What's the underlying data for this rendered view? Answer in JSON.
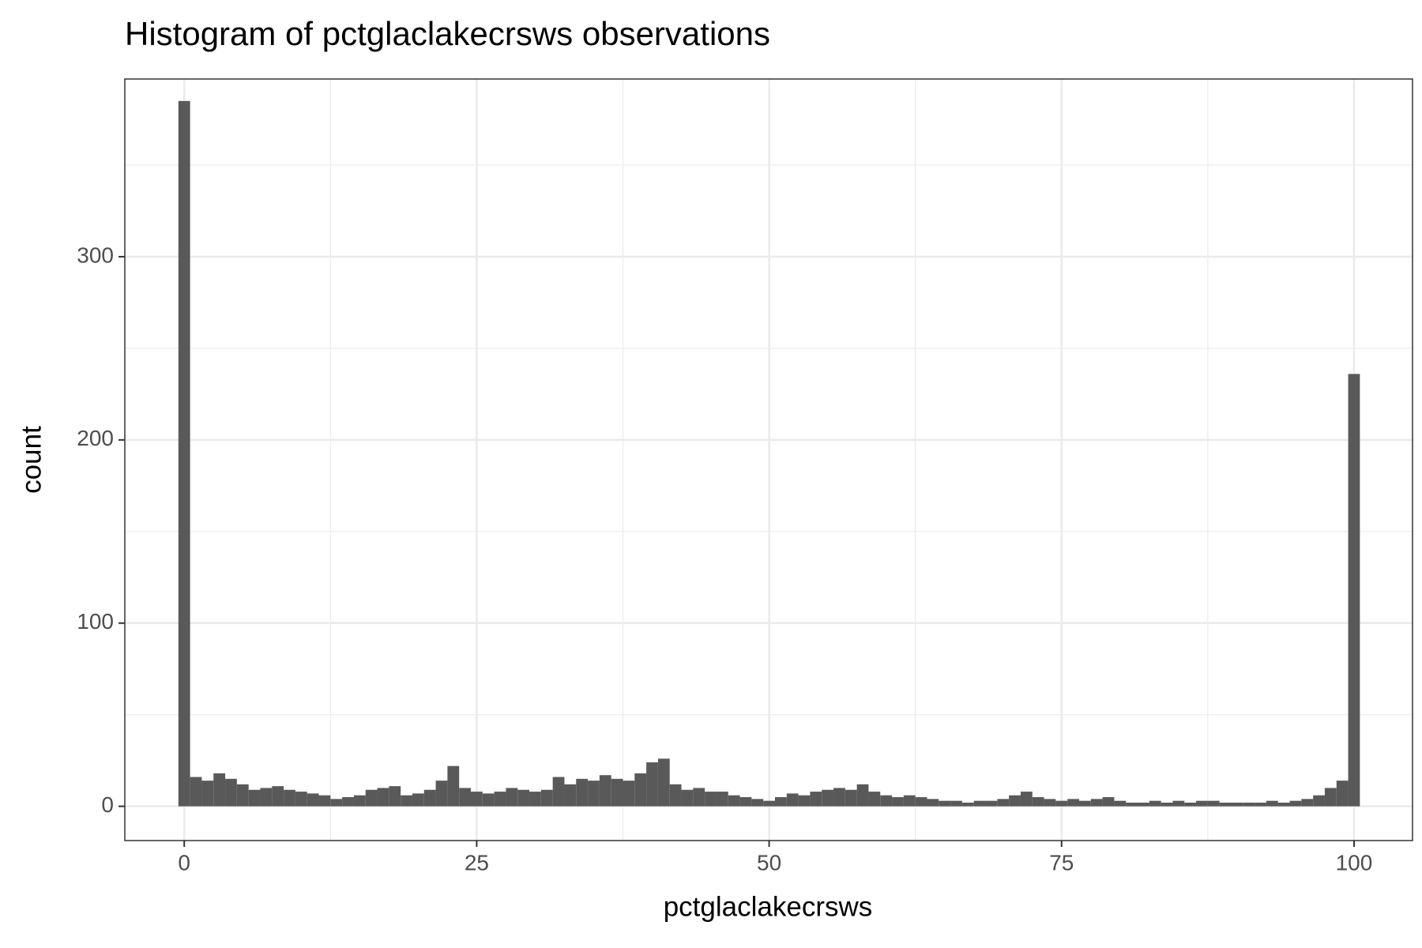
{
  "chart_data": {
    "type": "histogram",
    "title": "Histogram of pctglaclakecrsws observations",
    "x_label": "pctglaclakecrsws",
    "y_label": "count",
    "color": "#595959",
    "grid": true,
    "xlim": [
      -5.08,
      105.0
    ],
    "ylim": [
      -18.7,
      397
    ],
    "xticks": [
      0,
      25,
      50,
      75,
      100
    ],
    "yticks": [
      0,
      100,
      200,
      300
    ],
    "x_minor_ticks": [
      12.5,
      37.5,
      62.5,
      87.5
    ],
    "y_minor_ticks": [
      50,
      150,
      250,
      350
    ],
    "bins": [
      -0.5,
      0.5,
      1.5,
      2.5,
      3.5,
      4.5,
      5.5,
      6.5,
      7.5,
      8.5,
      9.5,
      10.5,
      11.5,
      12.5,
      13.5,
      14.5,
      15.5,
      16.5,
      17.5,
      18.5,
      19.5,
      20.5,
      21.5,
      22.5,
      23.5,
      24.5,
      25.5,
      26.5,
      27.5,
      28.5,
      29.5,
      30.5,
      31.5,
      32.5,
      33.5,
      34.5,
      35.5,
      36.5,
      37.5,
      38.5,
      39.5,
      40.5,
      41.5,
      42.5,
      43.5,
      44.5,
      45.5,
      46.5,
      47.5,
      48.5,
      49.5,
      50.5,
      51.5,
      52.5,
      53.5,
      54.5,
      55.5,
      56.5,
      57.5,
      58.5,
      59.5,
      60.5,
      61.5,
      62.5,
      63.5,
      64.5,
      65.5,
      66.5,
      67.5,
      68.5,
      69.5,
      70.5,
      71.5,
      72.5,
      73.5,
      74.5,
      75.5,
      76.5,
      77.5,
      78.5,
      79.5,
      80.5,
      81.5,
      82.5,
      83.5,
      84.5,
      85.5,
      86.5,
      87.5,
      88.5,
      89.5,
      90.5,
      91.5,
      92.5,
      93.5,
      94.5,
      95.5,
      96.5,
      97.5,
      98.5,
      99.5,
      100.5
    ],
    "counts": [
      385,
      16,
      14,
      18,
      15,
      12,
      9,
      10,
      11,
      9,
      8,
      7,
      6,
      4,
      5,
      6,
      9,
      10,
      11,
      6,
      7,
      9,
      14,
      22,
      10,
      8,
      7,
      8,
      10,
      9,
      8,
      9,
      16,
      12,
      15,
      14,
      17,
      15,
      14,
      18,
      24,
      26,
      12,
      9,
      10,
      8,
      8,
      6,
      5,
      4,
      3,
      5,
      7,
      6,
      8,
      9,
      10,
      9,
      12,
      8,
      6,
      5,
      6,
      5,
      4,
      3,
      3,
      2,
      3,
      3,
      4,
      6,
      8,
      5,
      4,
      3,
      4,
      3,
      4,
      5,
      3,
      2,
      2,
      3,
      2,
      3,
      2,
      3,
      3,
      2,
      2,
      2,
      2,
      3,
      2,
      3,
      4,
      6,
      10,
      14,
      236
    ]
  }
}
